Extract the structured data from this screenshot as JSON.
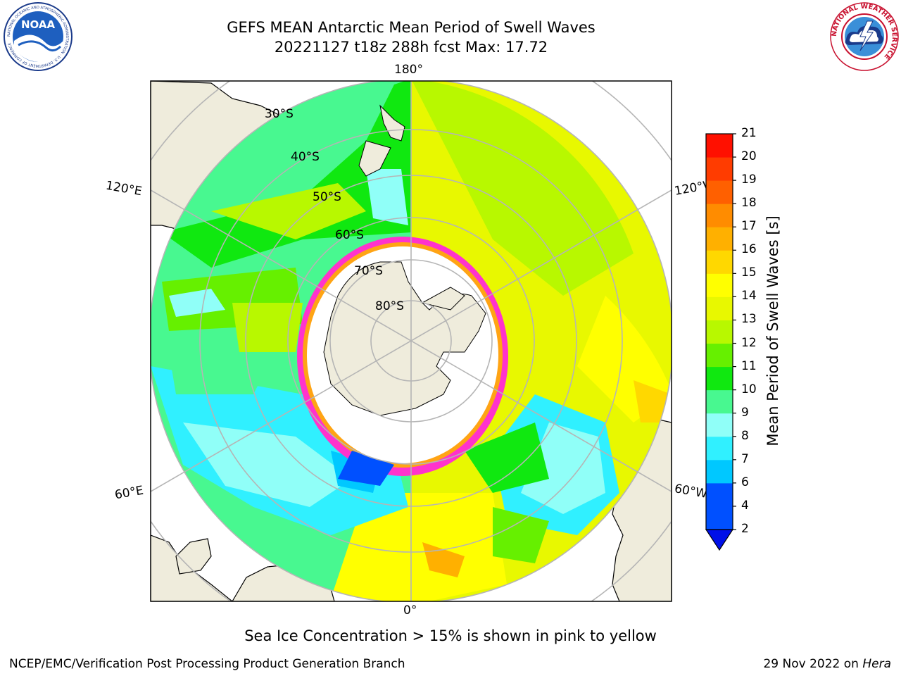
{
  "header": {
    "title_line1": "GEFS MEAN Antarctic Mean Period of Swell Waves",
    "title_line2": "20221127 t18z 288h fcst   Max: 17.72"
  },
  "logos": {
    "noaa": {
      "text": "NOAA",
      "ring_text": "NATIONAL OCEANIC AND ATMOSPHERIC ADMINISTRATION · U.S. DEPARTMENT OF COMMERCE"
    },
    "nws": {
      "ring_text": "NATIONAL WEATHER SERVICE"
    }
  },
  "map": {
    "projection": "south-polar-stereographic",
    "longitude_labels": {
      "top": "180°",
      "bottom": "0°",
      "left_upper": "120°E",
      "left_lower": "60°E",
      "right_upper": "120°W",
      "right_lower": "60°W"
    },
    "latitude_labels": [
      "30°S",
      "40°S",
      "50°S",
      "60°S",
      "70°S",
      "80°S"
    ],
    "colors": {
      "land": "#efecdc",
      "grid": "#b5b5b5",
      "ice_edge": "#ff33cc",
      "ice": "#ffffff"
    }
  },
  "colorbar": {
    "label": "Mean Period of Swell Waves [s]",
    "ticks": [
      "2",
      "4",
      "6",
      "7",
      "8",
      "9",
      "10",
      "11",
      "12",
      "13",
      "14",
      "15",
      "16",
      "17",
      "18",
      "19",
      "20",
      "21"
    ],
    "colors": [
      "#0050ff",
      "#00c8ff",
      "#30f0ff",
      "#90fff8",
      "#48f890",
      "#10e810",
      "#66f000",
      "#b8f800",
      "#e8f800",
      "#ffff00",
      "#ffd800",
      "#ffb000",
      "#ff8c00",
      "#ff6000",
      "#ff3c00",
      "#ff1000"
    ],
    "under_color": "#0010e8"
  },
  "caption": "Sea Ice Concentration > 15% is shown in pink to yellow",
  "footer": {
    "left": "NCEP/EMC/Verification Post Processing Product Generation Branch",
    "right_prefix": "29 Nov 2022 on ",
    "right_host": "Hera"
  }
}
